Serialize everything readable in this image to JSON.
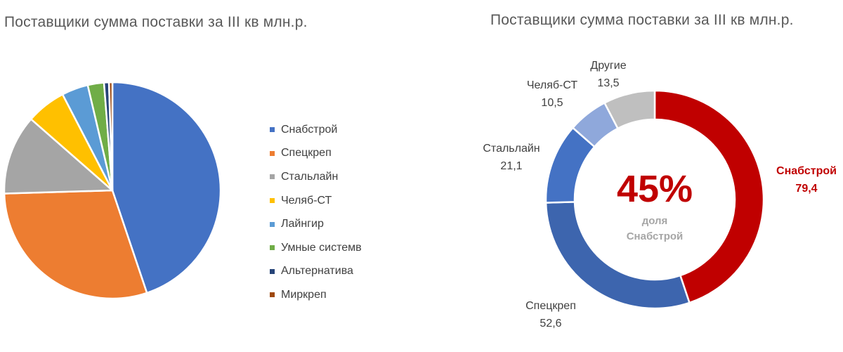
{
  "chart_data": [
    {
      "type": "pie",
      "title": "Поставщики сумма поставки за III кв млн.р.",
      "legend_position": "right",
      "slices": [
        {
          "label": "Снабстрой",
          "value": 79.4,
          "color": "#4472C4"
        },
        {
          "label": "Спецкреп",
          "value": 52.6,
          "color": "#ED7D31"
        },
        {
          "label": "Стальлайн",
          "value": 21.1,
          "color": "#A5A5A5"
        },
        {
          "label": "Челяб-СТ",
          "value": 10.5,
          "color": "#FFC000"
        },
        {
          "label": "Лайнгир",
          "value": 7.0,
          "color": "#5B9BD5"
        },
        {
          "label": "Умные системв",
          "value": 4.3,
          "color": "#70AD47"
        },
        {
          "label": "Альтернатива",
          "value": 1.3,
          "color": "#264478"
        },
        {
          "label": "Миркреп",
          "value": 0.9,
          "color": "#9E480E"
        }
      ]
    },
    {
      "type": "pie",
      "subtype": "donut",
      "title": "Поставщики сумма поставки за III кв млн.р.",
      "center_value": "45%",
      "center_label_line1": "доля",
      "center_label_line2": "Снабстрой",
      "slices": [
        {
          "label": "Снабстрой",
          "value": 79.4,
          "value_text": "79,4",
          "color": "#C00000"
        },
        {
          "label": "Спецкреп",
          "value": 52.6,
          "value_text": "52,6",
          "color": "#3D65AE"
        },
        {
          "label": "Стальлайн",
          "value": 21.1,
          "value_text": "21,1",
          "color": "#4472C4"
        },
        {
          "label": "Челяб-СТ",
          "value": 10.5,
          "value_text": "10,5",
          "color": "#8FA8DB"
        },
        {
          "label": "Другие",
          "value": 13.5,
          "value_text": "13,5",
          "color": "#BFBFBF"
        }
      ]
    }
  ]
}
